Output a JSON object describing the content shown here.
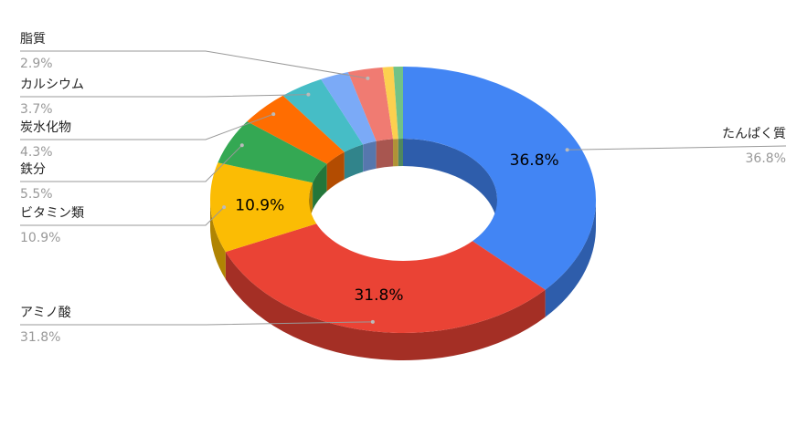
{
  "chart_data": {
    "type": "pie",
    "donut": true,
    "3d": true,
    "categories": [
      "たんぱく質",
      "アミノ酸",
      "ビタミン類",
      "鉄分",
      "炭水化物",
      "カルシウム",
      null,
      "脂質",
      null,
      null
    ],
    "values": [
      36.8,
      31.8,
      10.9,
      5.5,
      4.3,
      3.7,
      2.4,
      2.9,
      0.9,
      0.8
    ],
    "value_labels": [
      "36.8%",
      "31.8%",
      "10.9%",
      "5.5%",
      "4.3%",
      "3.7%",
      null,
      "2.9%",
      null,
      null
    ],
    "colors": [
      "#4285f4",
      "#ea4335",
      "#fbbc04",
      "#34a853",
      "#ff6d01",
      "#46bdc6",
      "#7baaf7",
      "#f07b72",
      "#fcd04f",
      "#71c287"
    ]
  }
}
